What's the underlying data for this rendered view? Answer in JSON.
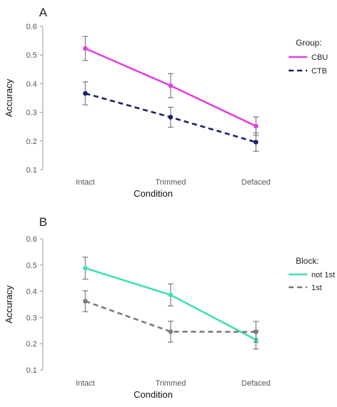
{
  "chart_data": [
    {
      "panel": "A",
      "type": "line",
      "categories": [
        "Intact",
        "Trimmed",
        "Defaced"
      ],
      "xlabel": "Condition",
      "ylabel": "Accuracy",
      "ylim": [
        0.1,
        0.6
      ],
      "yticks": [
        "0.1",
        "0.2",
        "0.3",
        "0.4",
        "0.5",
        "0.6"
      ],
      "grid": false,
      "legend": {
        "title": "Group:",
        "position": "right"
      },
      "series": [
        {
          "name": "CBU",
          "color": "#e040e0",
          "dash": "solid",
          "values": [
            0.523,
            0.393,
            0.252
          ],
          "error": [
            0.042,
            0.042,
            0.032
          ]
        },
        {
          "name": "CTB",
          "color": "#1a1f6e",
          "dash": "dashed",
          "values": [
            0.366,
            0.283,
            0.196
          ],
          "error": [
            0.04,
            0.035,
            0.032
          ]
        }
      ]
    },
    {
      "panel": "B",
      "type": "line",
      "categories": [
        "Intact",
        "Trimmed",
        "Defaced"
      ],
      "xlabel": "Condition",
      "ylabel": "Accuracy",
      "ylim": [
        0.1,
        0.6
      ],
      "yticks": [
        "0.1",
        "0.2",
        "0.3",
        "0.4",
        "0.5",
        "0.6"
      ],
      "grid": false,
      "legend": {
        "title": "Block:",
        "position": "right"
      },
      "series": [
        {
          "name": "not 1st",
          "color": "#40e0b8",
          "dash": "solid",
          "values": [
            0.488,
            0.386,
            0.215
          ],
          "error": [
            0.042,
            0.042,
            0.035
          ]
        },
        {
          "name": "1st",
          "color": "#7a7a7a",
          "dash": "dashed",
          "values": [
            0.362,
            0.246,
            0.245
          ],
          "error": [
            0.04,
            0.04,
            0.04
          ]
        }
      ]
    }
  ]
}
